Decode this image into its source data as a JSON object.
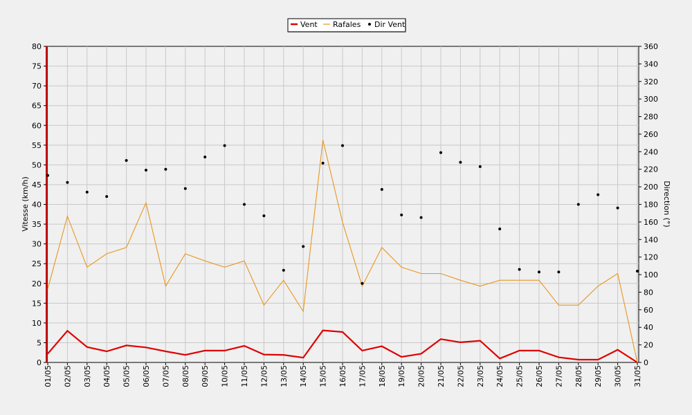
{
  "chart_data": {
    "type": "line",
    "categories": [
      "01/05",
      "02/05",
      "03/05",
      "04/05",
      "05/05",
      "06/05",
      "07/05",
      "08/05",
      "09/05",
      "10/05",
      "11/05",
      "12/05",
      "13/05",
      "14/05",
      "15/05",
      "16/05",
      "17/05",
      "18/05",
      "19/05",
      "20/05",
      "21/05",
      "22/05",
      "23/05",
      "24/05",
      "25/05",
      "26/05",
      "27/05",
      "28/05",
      "29/05",
      "30/05",
      "31/05"
    ],
    "ylabel_left": "Vitesse (km/h)",
    "ylabel_right": "Direction (°)",
    "ylim_left": [
      0,
      80
    ],
    "ylim_right": [
      0,
      360
    ],
    "yticks_left": [
      0,
      5,
      10,
      15,
      20,
      25,
      30,
      35,
      40,
      45,
      50,
      55,
      60,
      65,
      70,
      75,
      80
    ],
    "yticks_right": [
      0,
      20,
      40,
      60,
      80,
      100,
      120,
      140,
      160,
      180,
      200,
      220,
      240,
      260,
      280,
      300,
      320,
      340,
      360
    ],
    "grid": true,
    "legend_position": "top-center",
    "series": [
      {
        "name": "Vent",
        "axis": "left",
        "color": "#e00000",
        "kind": "line",
        "values": [
          2.2,
          8.0,
          3.9,
          2.8,
          4.3,
          3.8,
          2.8,
          1.9,
          3.0,
          3.0,
          4.2,
          2.0,
          1.9,
          1.2,
          8.1,
          7.7,
          3.0,
          4.1,
          1.4,
          2.2,
          5.9,
          5.1,
          5.5,
          1.0,
          3.0,
          3.0,
          1.3,
          0.7,
          0.7,
          3.2,
          0.0
        ]
      },
      {
        "name": "Rafales",
        "axis": "left",
        "color": "#e8961e",
        "kind": "line",
        "values": [
          18.6,
          37.0,
          24.1,
          27.5,
          29.1,
          40.4,
          19.3,
          27.5,
          25.7,
          24.1,
          25.7,
          14.5,
          20.8,
          12.9,
          56.3,
          35.5,
          19.3,
          29.1,
          24.1,
          22.5,
          22.5,
          20.8,
          19.3,
          20.8,
          20.8,
          20.8,
          14.5,
          14.5,
          19.3,
          22.5,
          0.0
        ]
      },
      {
        "name": "Dir Vent",
        "axis": "right",
        "color": "#000000",
        "kind": "scatter",
        "values": [
          213,
          205,
          194,
          189,
          230,
          219,
          220,
          198,
          234,
          247,
          180,
          167,
          105,
          132,
          227,
          247,
          90,
          197,
          168,
          165,
          239,
          228,
          223,
          152,
          106,
          103,
          103,
          180,
          191,
          176,
          104
        ]
      }
    ]
  }
}
